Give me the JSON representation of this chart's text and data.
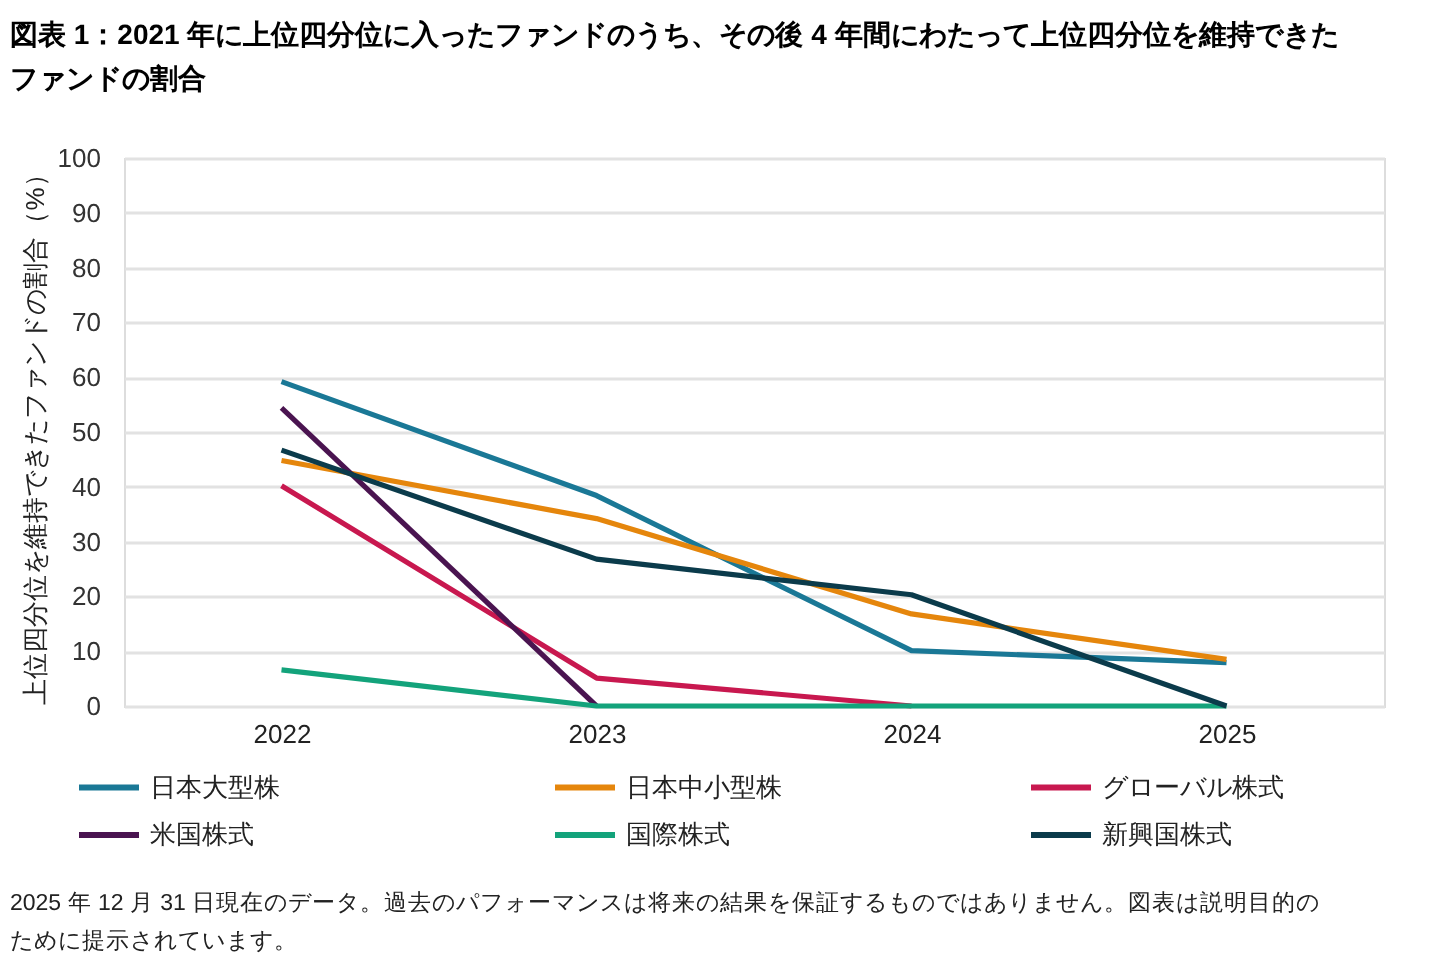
{
  "chart_data": {
    "type": "line",
    "title": "図表 1：2021 年に上位四分位に入ったファンドのうち、その後 4 年間にわたって上位四分位を維持できたファンドの割合",
    "ylabel": "上位四分位を維持できたファンドの割合（%）",
    "categories": [
      "2022",
      "2023",
      "2024",
      "2025"
    ],
    "series": [
      {
        "name": "日本大型株",
        "color": "#1a7896",
        "values": [
          59.2,
          38.4,
          10.1,
          7.9
        ]
      },
      {
        "name": "日本中小型株",
        "color": "#e5860c",
        "values": [
          44.8,
          34.2,
          16.8,
          8.5
        ]
      },
      {
        "name": "グローバル株式",
        "color": "#c8184f",
        "values": [
          40.2,
          5.1,
          0,
          null
        ]
      },
      {
        "name": "米国株式",
        "color": "#4a1450",
        "values": [
          54.4,
          0,
          null,
          null
        ]
      },
      {
        "name": "国際株式",
        "color": "#13a37b",
        "values": [
          6.6,
          0,
          0,
          0
        ]
      },
      {
        "name": "新興国株式",
        "color": "#0b3b4b",
        "values": [
          46.7,
          26.8,
          20.3,
          0
        ]
      }
    ],
    "ylim": [
      0,
      100
    ],
    "yticks": [
      0,
      10,
      20,
      30,
      40,
      50,
      60,
      70,
      80,
      90,
      100
    ],
    "grid": "y",
    "legend": "bottom",
    "annotations": [
      "2025 年 12 月 31 日現在のデータ。過去のパフォーマンスは将来の結果を保証するものではありません。図表は説明目的のために提示されています。"
    ]
  }
}
